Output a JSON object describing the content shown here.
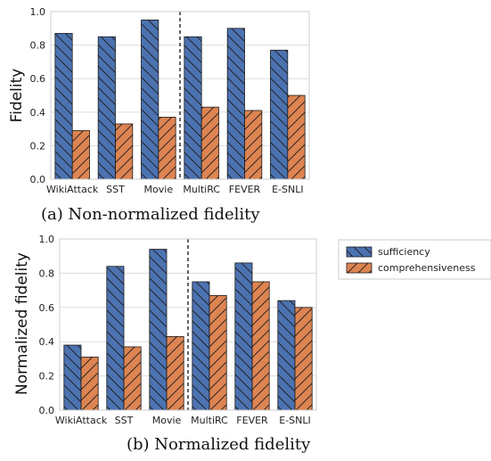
{
  "colors": {
    "sufficiency": "#4c72b0",
    "comprehensiveness": "#dd8452",
    "grid": "#dedede"
  },
  "legend": {
    "items": [
      "sufficiency",
      "comprehensiveness"
    ]
  },
  "chart_data": [
    {
      "type": "bar",
      "caption": "(a) Non-normalized fidelity",
      "ylabel": "Fidelity",
      "xlabel": "",
      "ylim": [
        0,
        1.0
      ],
      "yticks": [
        "0.0",
        "0.2",
        "0.4",
        "0.6",
        "0.8",
        "1.0"
      ],
      "categories": [
        "WikiAttack",
        "SST",
        "Movie",
        "MultiRC",
        "FEVER",
        "E-SNLI"
      ],
      "series": [
        {
          "name": "sufficiency",
          "values": [
            0.87,
            0.85,
            0.95,
            0.85,
            0.9,
            0.77
          ]
        },
        {
          "name": "comprehensiveness",
          "values": [
            0.29,
            0.33,
            0.37,
            0.43,
            0.41,
            0.5
          ]
        }
      ],
      "separator_after_index": 2,
      "grid": true
    },
    {
      "type": "bar",
      "caption": "(b) Normalized fidelity",
      "ylabel": "Normalized fidelity",
      "xlabel": "",
      "ylim": [
        0,
        1.0
      ],
      "yticks": [
        "0.0",
        "0.2",
        "0.4",
        "0.6",
        "0.8",
        "1.0"
      ],
      "categories": [
        "WikiAttack",
        "SST",
        "Movie",
        "MultiRC",
        "FEVER",
        "E-SNLI"
      ],
      "series": [
        {
          "name": "sufficiency",
          "values": [
            0.38,
            0.84,
            0.94,
            0.75,
            0.86,
            0.64
          ]
        },
        {
          "name": "comprehensiveness",
          "values": [
            0.31,
            0.37,
            0.43,
            0.67,
            0.75,
            0.6
          ]
        }
      ],
      "separator_after_index": 2,
      "grid": true,
      "legend_position": "right"
    }
  ]
}
